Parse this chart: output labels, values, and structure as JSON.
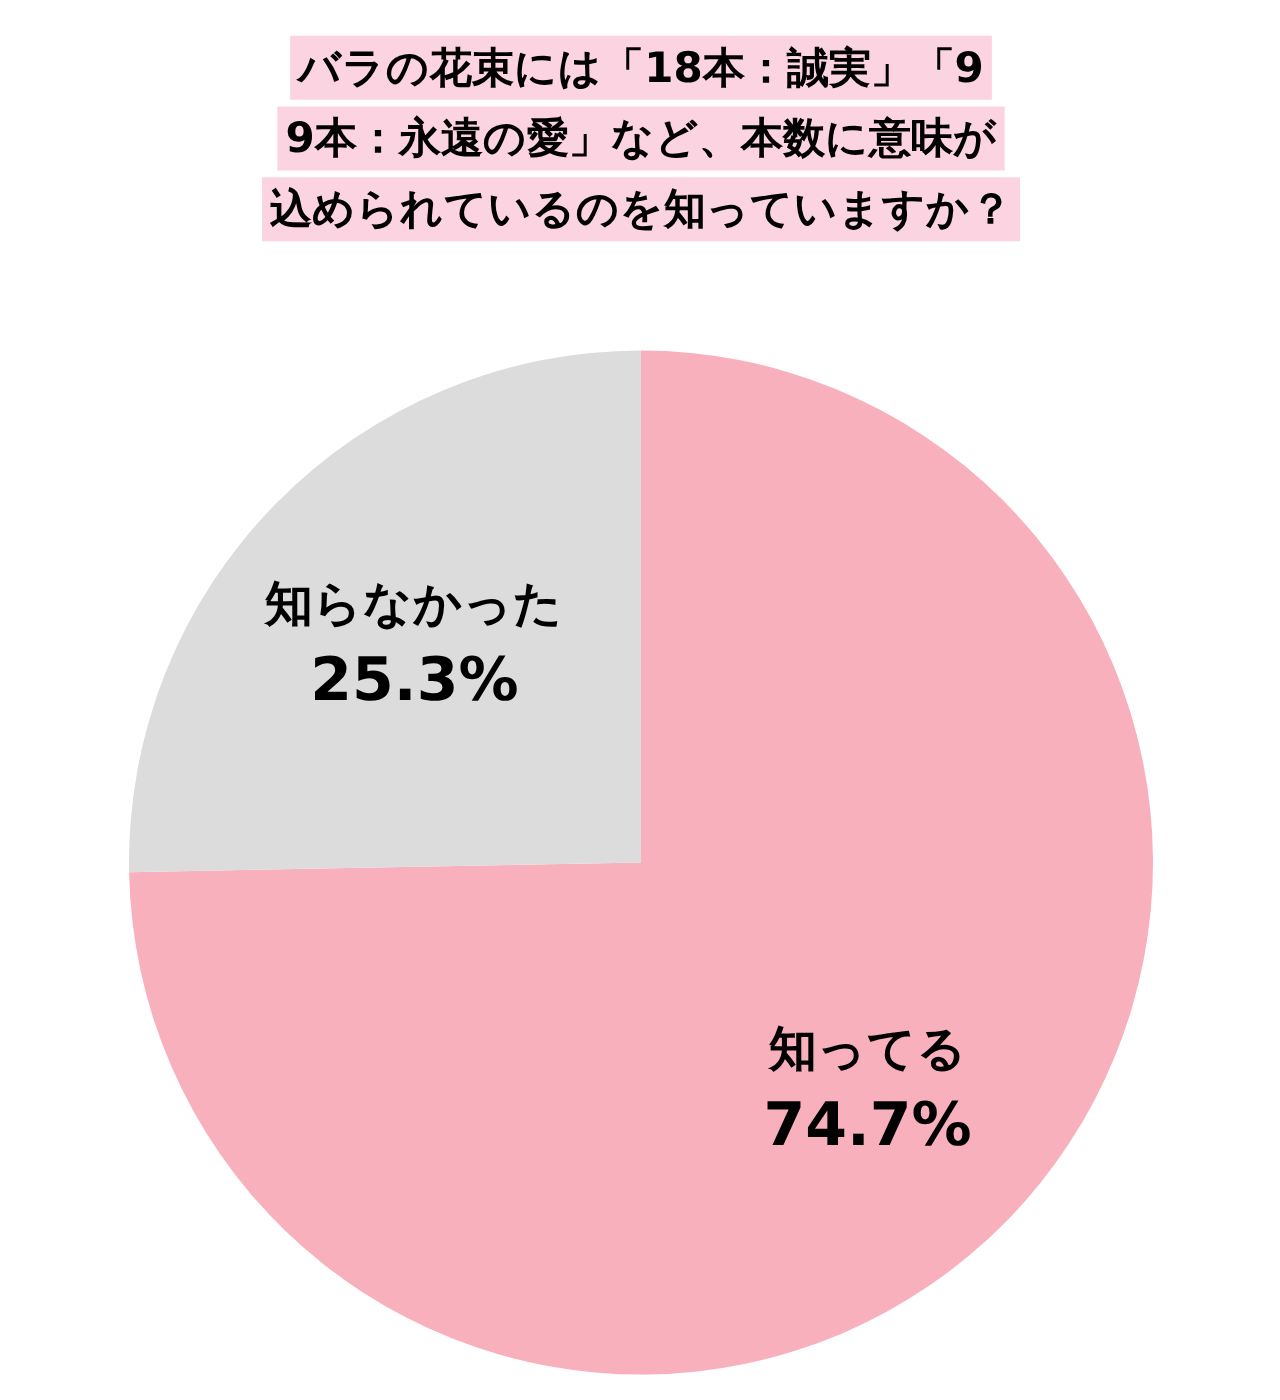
{
  "chart_data": {
    "type": "pie",
    "title": "バラの花束には「18本：誠実」「99本：永遠の愛」など、本数に意味が込められているのを知っていますか？",
    "categories": [
      "知ってる",
      "知らなかった"
    ],
    "values": [
      74.7,
      25.3
    ],
    "colors": [
      "#f9b0bd",
      "#dcdcdc"
    ],
    "value_labels": [
      "74.7%",
      "25.3%"
    ]
  }
}
